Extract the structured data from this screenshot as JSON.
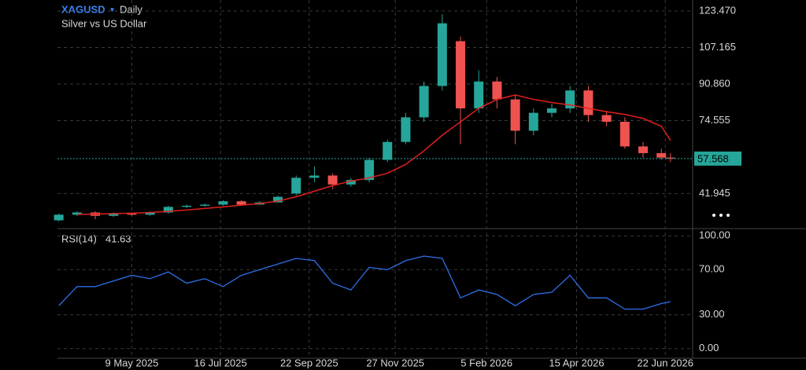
{
  "chart_data": [
    {
      "type": "candlestick",
      "title": "XAGUSD",
      "interval": "Daily",
      "subtitle": "Silver vs US Dollar",
      "x": [
        "2025-03-14",
        "2025-03-28",
        "2025-04-11",
        "2025-04-25",
        "2025-05-09",
        "2025-05-23",
        "2025-06-06",
        "2025-06-20",
        "2025-07-04",
        "2025-07-18",
        "2025-08-01",
        "2025-08-15",
        "2025-08-29",
        "2025-09-12",
        "2025-09-26",
        "2025-10-10",
        "2025-10-24",
        "2025-11-07",
        "2025-11-21",
        "2025-12-05",
        "2025-12-19",
        "2026-01-02",
        "2026-01-16",
        "2026-01-30",
        "2026-02-13",
        "2026-02-27",
        "2026-03-13",
        "2026-03-27",
        "2026-04-10",
        "2026-04-24",
        "2026-05-08",
        "2026-05-22",
        "2026-06-05",
        "2026-06-19",
        "2026-06-26"
      ],
      "open": [
        30,
        32.5,
        33.5,
        32,
        33,
        32.5,
        33.5,
        36,
        36.5,
        37,
        38.5,
        37,
        38,
        42,
        49,
        50,
        46,
        48,
        57,
        65,
        76,
        90,
        110,
        80,
        92,
        84,
        70,
        78,
        80,
        88,
        77,
        74,
        63,
        60,
        58
      ],
      "high": [
        33,
        34,
        34,
        33.5,
        33.5,
        34,
        36.5,
        37,
        37.5,
        39,
        39,
        38.5,
        41,
        50,
        54,
        51,
        49,
        58,
        66,
        78,
        92,
        122,
        112,
        97,
        94,
        86,
        80,
        82,
        90,
        90,
        79,
        76,
        65,
        62,
        60
      ],
      "low": [
        29.5,
        32,
        30.5,
        31.5,
        32,
        32,
        33,
        35.5,
        36,
        36.5,
        36.5,
        37,
        38,
        41,
        47,
        44,
        45,
        47,
        56,
        64,
        74,
        88,
        64,
        78,
        80,
        64,
        68,
        76,
        78,
        74,
        72,
        62,
        58,
        57,
        56
      ],
      "close": [
        32.5,
        33.5,
        32,
        33,
        32.5,
        33.5,
        36,
        36.5,
        37,
        38.5,
        37,
        38,
        40.5,
        49,
        50,
        46,
        48,
        57,
        65,
        76,
        90,
        118,
        80,
        92,
        84,
        70,
        78,
        80,
        88,
        77,
        74,
        63,
        60,
        58,
        57.568
      ],
      "up_color": "#26a69a",
      "down_color": "#ef5350",
      "ma_values": [
        null,
        32.6,
        32.8,
        33,
        33.2,
        33.5,
        34,
        34.6,
        35.3,
        36,
        36.8,
        37.5,
        38.6,
        40.5,
        43,
        45.5,
        47.5,
        49,
        51,
        55,
        61,
        68,
        74,
        80,
        84,
        86,
        84,
        82.6,
        81.5,
        80,
        78.5,
        77.3,
        75.5,
        72,
        65.7
      ],
      "ma_color": "#e0201e",
      "last_price": 57.568,
      "last_color": "#26a69a",
      "xlim": [
        "2025-03-13",
        "2026-07-13"
      ],
      "xticks": [
        {
          "value": "2025-05-09",
          "label": "9 May 2025"
        },
        {
          "value": "2025-07-16",
          "label": "16 Jul 2025"
        },
        {
          "value": "2025-09-22",
          "label": "22 Sep 2025"
        },
        {
          "value": "2025-11-27",
          "label": "27 Nov 2025"
        },
        {
          "value": "2026-02-05",
          "label": "5 Feb 2026"
        },
        {
          "value": "2026-04-15",
          "label": "15 Apr 2026"
        },
        {
          "value": "2026-06-22",
          "label": "22 Jun 2026"
        }
      ],
      "ylim": [
        26.3,
        128.4
      ],
      "yticks": [
        {
          "value": 123.47,
          "label": "123.470"
        },
        {
          "value": 107.165,
          "label": "107.165"
        },
        {
          "value": 90.86,
          "label": "90.860"
        },
        {
          "value": 74.555,
          "label": "74.555"
        },
        {
          "value": 41.945,
          "label": "41.945"
        }
      ],
      "grid": true
    },
    {
      "type": "line",
      "title": "RSI(14)",
      "last_value": 41.63,
      "color": "#2f6fe8",
      "x": [
        "2025-03-14",
        "2025-03-28",
        "2025-04-11",
        "2025-04-25",
        "2025-05-09",
        "2025-05-23",
        "2025-06-06",
        "2025-06-20",
        "2025-07-04",
        "2025-07-18",
        "2025-08-01",
        "2025-08-15",
        "2025-08-29",
        "2025-09-12",
        "2025-09-26",
        "2025-10-10",
        "2025-10-24",
        "2025-11-07",
        "2025-11-21",
        "2025-12-05",
        "2025-12-19",
        "2026-01-02",
        "2026-01-16",
        "2026-01-30",
        "2026-02-13",
        "2026-02-27",
        "2026-03-13",
        "2026-03-27",
        "2026-04-10",
        "2026-04-24",
        "2026-05-08",
        "2026-05-22",
        "2026-06-05",
        "2026-06-19",
        "2026-06-26"
      ],
      "values": [
        38,
        55,
        55,
        60,
        65,
        62,
        68,
        58,
        62,
        55,
        65,
        70,
        75,
        80,
        78,
        58,
        52,
        72,
        70,
        78,
        82,
        80,
        45,
        52,
        48,
        38,
        48,
        50,
        65,
        45,
        45,
        35,
        35,
        40,
        41.63
      ],
      "ylim": [
        -8.5,
        106.4
      ],
      "yticks": [
        {
          "value": 100,
          "label": "100.00"
        },
        {
          "value": 70,
          "label": "70.00"
        },
        {
          "value": 30,
          "label": "30.00"
        },
        {
          "value": 0,
          "label": "0.00"
        }
      ],
      "grid": true
    }
  ]
}
